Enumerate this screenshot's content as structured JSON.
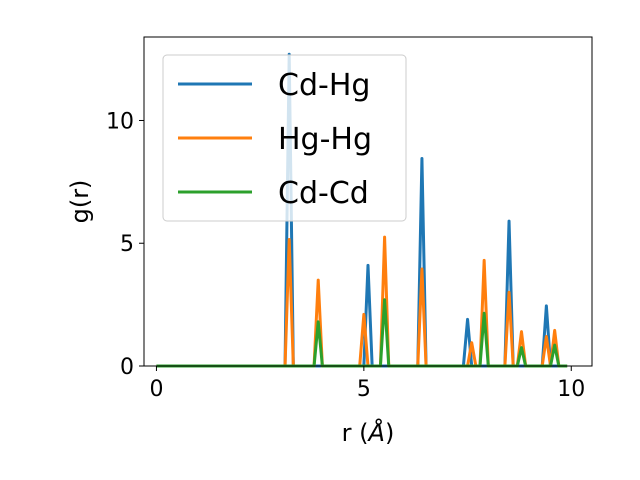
{
  "chart_data": {
    "type": "line",
    "title": "",
    "xlabel_prefix": "r (",
    "xlabel_unit": "Å",
    "xlabel_suffix": ")",
    "ylabel": "g(r)",
    "xlim": [
      -0.3,
      10.5
    ],
    "ylim": [
      0,
      13.4
    ],
    "xticks": [
      0,
      5,
      10
    ],
    "yticks": [
      0,
      5,
      10
    ],
    "grid": false,
    "legend_position": "upper-left",
    "series": [
      {
        "name": "Cd-Hg",
        "color": "#1f77b4",
        "peaks": [
          [
            3.2,
            12.7
          ],
          [
            5.1,
            4.1
          ],
          [
            6.4,
            8.45
          ],
          [
            7.5,
            1.9
          ],
          [
            8.5,
            5.9
          ],
          [
            9.4,
            2.45
          ]
        ]
      },
      {
        "name": "Hg-Hg",
        "color": "#ff7f0e",
        "peaks": [
          [
            3.2,
            5.15
          ],
          [
            3.9,
            3.5
          ],
          [
            5.0,
            2.1
          ],
          [
            5.5,
            5.25
          ],
          [
            6.4,
            3.95
          ],
          [
            7.6,
            0.95
          ],
          [
            7.9,
            4.3
          ],
          [
            8.5,
            3.0
          ],
          [
            8.8,
            1.4
          ],
          [
            9.4,
            1.2
          ],
          [
            9.6,
            1.45
          ]
        ]
      },
      {
        "name": "Cd-Cd",
        "color": "#2ca02c",
        "peaks": [
          [
            3.9,
            1.8
          ],
          [
            5.5,
            2.7
          ],
          [
            7.9,
            2.15
          ],
          [
            8.8,
            0.75
          ],
          [
            9.6,
            0.85
          ]
        ]
      }
    ]
  }
}
